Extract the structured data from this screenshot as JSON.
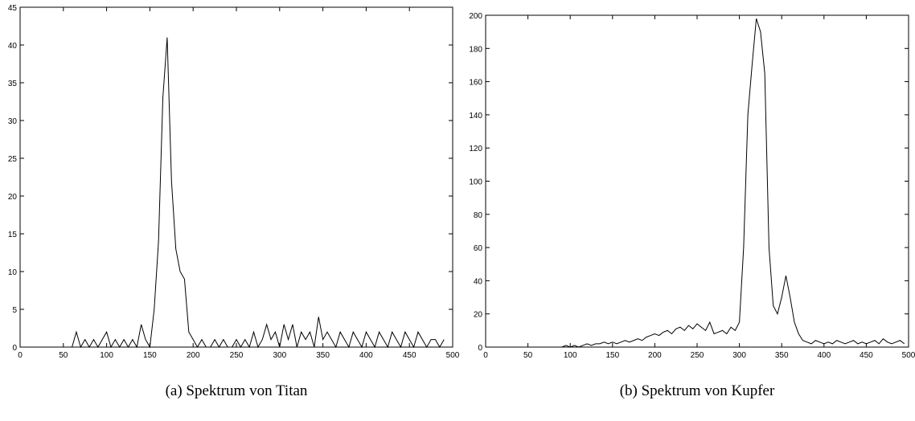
{
  "chart_data": [
    {
      "type": "line",
      "caption": "(a) Spektrum von Titan",
      "color": "#000000",
      "grid": false,
      "xlim": [
        0,
        500
      ],
      "xticks": [
        0,
        50,
        100,
        150,
        200,
        250,
        300,
        350,
        400,
        450,
        500
      ],
      "ylim": [
        0,
        45
      ],
      "yticks": [
        0,
        5,
        10,
        15,
        20,
        25,
        30,
        35,
        40,
        45
      ],
      "x": [
        0,
        5,
        10,
        15,
        20,
        25,
        30,
        35,
        40,
        45,
        50,
        55,
        60,
        65,
        70,
        75,
        80,
        85,
        90,
        95,
        100,
        105,
        110,
        115,
        120,
        125,
        130,
        135,
        140,
        145,
        150,
        155,
        160,
        165,
        170,
        175,
        180,
        185,
        190,
        195,
        200,
        205,
        210,
        215,
        220,
        225,
        230,
        235,
        240,
        245,
        250,
        255,
        260,
        265,
        270,
        275,
        280,
        285,
        290,
        295,
        300,
        305,
        310,
        315,
        320,
        325,
        330,
        335,
        340,
        345,
        350,
        355,
        360,
        365,
        370,
        375,
        380,
        385,
        390,
        395,
        400,
        405,
        410,
        415,
        420,
        425,
        430,
        435,
        440,
        445,
        450,
        455,
        460,
        465,
        470,
        475,
        480,
        485,
        490
      ],
      "values": [
        0,
        0,
        0,
        0,
        0,
        0,
        0,
        0,
        0,
        0,
        0,
        0,
        0,
        2,
        0,
        1,
        0,
        1,
        0,
        1,
        2,
        0,
        1,
        0,
        1,
        0,
        1,
        0,
        3,
        1,
        0,
        5,
        14,
        33,
        41,
        22,
        13,
        10,
        9,
        2,
        1,
        0,
        1,
        0,
        0,
        1,
        0,
        1,
        0,
        0,
        1,
        0,
        1,
        0,
        2,
        0,
        1,
        3,
        1,
        2,
        0,
        3,
        1,
        3,
        0,
        2,
        1,
        2,
        0,
        4,
        1,
        2,
        1,
        0,
        2,
        1,
        0,
        2,
        1,
        0,
        2,
        1,
        0,
        2,
        1,
        0,
        2,
        1,
        0,
        2,
        1,
        0,
        2,
        1,
        0,
        1,
        1,
        0,
        1
      ]
    },
    {
      "type": "line",
      "caption": "(b) Spektrum von Kupfer",
      "color": "#000000",
      "grid": false,
      "xlim": [
        0,
        500
      ],
      "xticks": [
        0,
        50,
        100,
        150,
        200,
        250,
        300,
        350,
        400,
        450,
        500
      ],
      "ylim": [
        0,
        200
      ],
      "yticks": [
        0,
        20,
        40,
        60,
        80,
        100,
        120,
        140,
        160,
        180,
        200
      ],
      "x": [
        0,
        5,
        10,
        15,
        20,
        25,
        30,
        35,
        40,
        45,
        50,
        55,
        60,
        65,
        70,
        75,
        80,
        85,
        90,
        95,
        100,
        105,
        110,
        115,
        120,
        125,
        130,
        135,
        140,
        145,
        150,
        155,
        160,
        165,
        170,
        175,
        180,
        185,
        190,
        195,
        200,
        205,
        210,
        215,
        220,
        225,
        230,
        235,
        240,
        245,
        250,
        255,
        260,
        265,
        270,
        275,
        280,
        285,
        290,
        295,
        300,
        305,
        310,
        315,
        320,
        325,
        330,
        335,
        340,
        345,
        350,
        355,
        360,
        365,
        370,
        375,
        380,
        385,
        390,
        395,
        400,
        405,
        410,
        415,
        420,
        425,
        430,
        435,
        440,
        445,
        450,
        455,
        460,
        465,
        470,
        475,
        480,
        485,
        490,
        495
      ],
      "values": [
        0,
        0,
        0,
        0,
        0,
        0,
        0,
        0,
        0,
        0,
        0,
        0,
        0,
        0,
        0,
        0,
        0,
        0,
        0,
        1,
        0,
        1,
        0,
        1,
        2,
        1,
        2,
        2,
        3,
        2,
        3,
        2,
        3,
        4,
        3,
        4,
        5,
        4,
        6,
        7,
        8,
        7,
        9,
        10,
        8,
        11,
        12,
        10,
        13,
        11,
        14,
        12,
        10,
        15,
        8,
        9,
        10,
        8,
        12,
        10,
        15,
        60,
        140,
        170,
        198,
        190,
        165,
        60,
        25,
        20,
        30,
        43,
        30,
        15,
        8,
        4,
        3,
        2,
        4,
        3,
        2,
        3,
        2,
        4,
        3,
        2,
        3,
        4,
        2,
        3,
        2,
        3,
        4,
        2,
        5,
        3,
        2,
        3,
        4,
        2
      ]
    }
  ]
}
